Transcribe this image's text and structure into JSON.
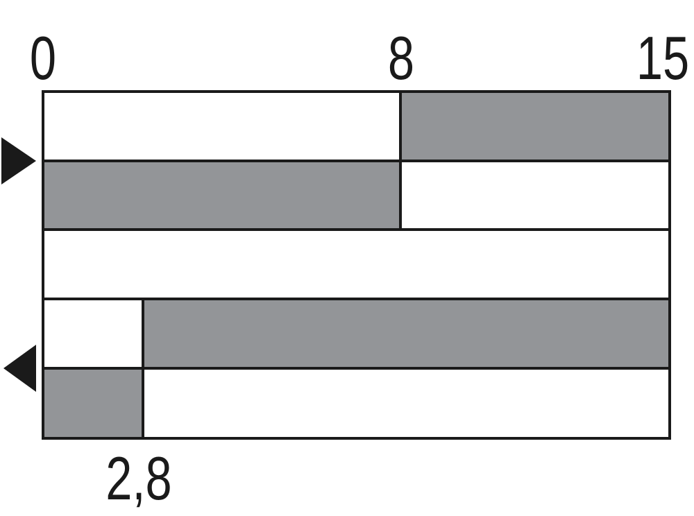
{
  "diagram": {
    "scale_labels_top": [
      "0",
      "8",
      "15"
    ],
    "scale_label_bottom": "2,8",
    "colors": {
      "active": "#939598",
      "inactive": "#ffffff",
      "stroke": "#1a1a1a"
    },
    "rows": [
      {
        "segments": [
          {
            "from": 0,
            "to": 8,
            "state": "inactive"
          },
          {
            "from": 8,
            "to": 15,
            "state": "active"
          }
        ]
      },
      {
        "segments": [
          {
            "from": 0,
            "to": 8,
            "state": "active"
          },
          {
            "from": 8,
            "to": 15,
            "state": "inactive"
          }
        ]
      },
      {
        "segments": [
          {
            "from": 0,
            "to": 15,
            "state": "inactive"
          }
        ]
      },
      {
        "segments": [
          {
            "from": 0,
            "to": 2.8,
            "state": "inactive"
          },
          {
            "from": 2.8,
            "to": 15,
            "state": "active"
          }
        ]
      },
      {
        "segments": [
          {
            "from": 0,
            "to": 2.8,
            "state": "active"
          },
          {
            "from": 2.8,
            "to": 15,
            "state": "inactive"
          }
        ]
      }
    ],
    "markers": [
      {
        "icon": "triangle-right-icon",
        "between_rows": [
          1,
          2
        ]
      },
      {
        "icon": "triangle-left-icon",
        "between_rows": [
          4,
          5
        ]
      }
    ]
  }
}
